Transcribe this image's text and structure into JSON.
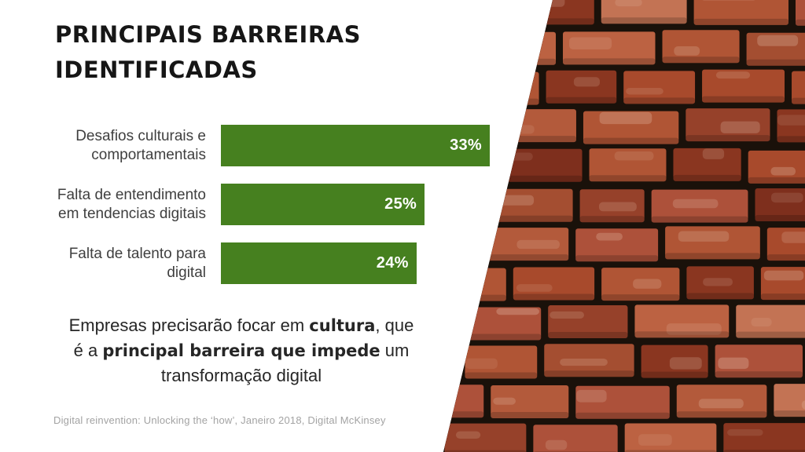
{
  "slide": {
    "title": {
      "line1": "PRINCIPAIS BARREIRAS",
      "line2": "IDENTIFICADAS"
    },
    "callout": {
      "l1a": "Empresas precisarão focar em ",
      "l1b": "cultura",
      "l1c": ", que",
      "l2a": "é a ",
      "l2b": "principal barreira que impede",
      "l2c": " um",
      "l3": "transformação digital"
    },
    "source": "Digital reinvention: Unlocking the ‘how’, Janeiro 2018, Digital McKinsey",
    "colors": {
      "bar_green": "#46801f",
      "title_text": "#161616",
      "label_text": "#3f3f3f",
      "value_text": "#ffffff",
      "source_text": "#a3a3a3",
      "mortar_dark": "#1a110a"
    }
  },
  "chart_data": {
    "type": "bar",
    "orientation": "horizontal",
    "title": "",
    "xlabel": "",
    "ylabel": "",
    "categories": [
      "Desafios culturais e comportamentais",
      "Falta de entendimento em tendencias digitais",
      "Falta de talento para digital"
    ],
    "label_lines": [
      [
        "Desafios culturais e",
        "comportamentais"
      ],
      [
        "Falta de entendimento",
        "em tendencias digitais"
      ],
      [
        "Falta de talento para",
        "digital"
      ]
    ],
    "values": [
      33,
      25,
      24
    ],
    "value_labels": [
      "33%",
      "25%",
      "24%"
    ],
    "xlim": [
      0,
      33
    ],
    "bar_color": "#46801f",
    "grid": false,
    "legend": false,
    "value_label_position": "inside-end"
  }
}
